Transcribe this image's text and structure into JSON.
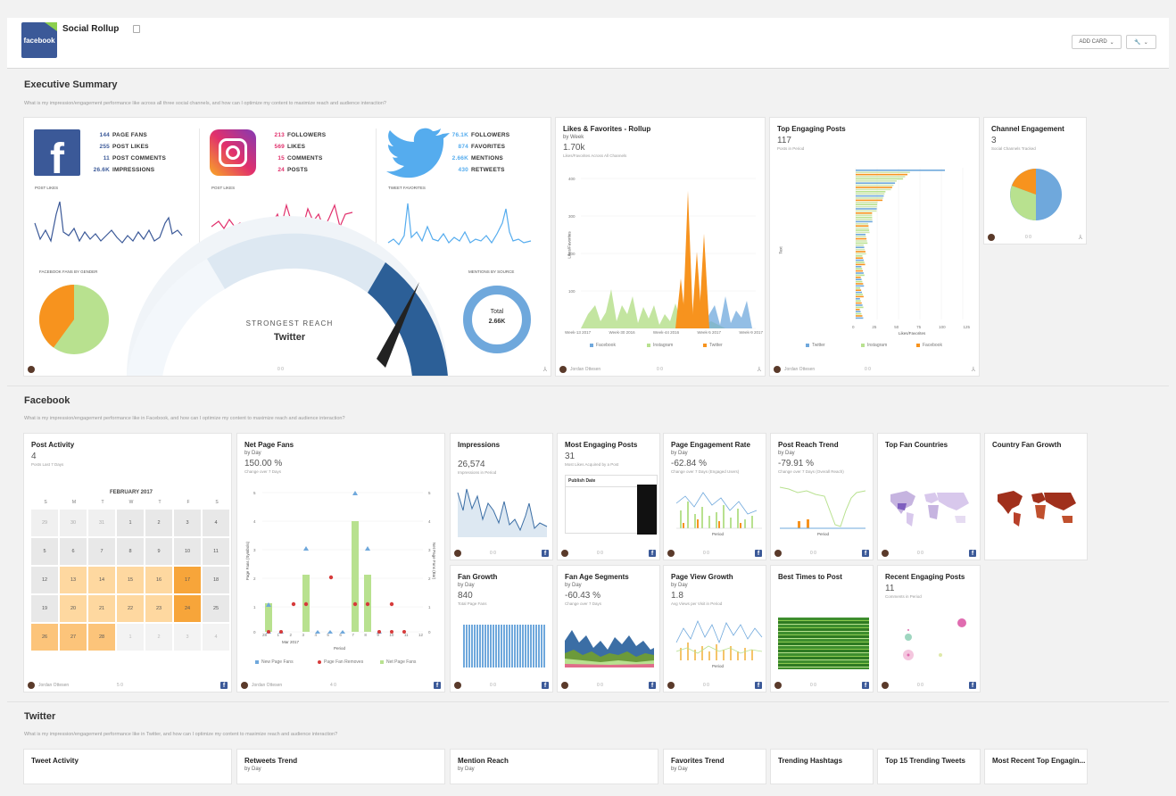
{
  "app": {
    "title": "Social Rollup",
    "logo_text": "facebook",
    "add_card": "ADD CARD",
    "colors": {
      "facebook": "#3b5998",
      "twitter": "#55acee",
      "instagram": "#e1306c",
      "orange": "#f7931e",
      "green": "#b8e18f"
    }
  },
  "sections": {
    "exec": {
      "title": "Executive Summary",
      "subtitle": "What is my impression/engagement performance like across all three social channels, and how can I optimize my content to maximize reach and audience interaction?"
    },
    "facebook": {
      "title": "Facebook",
      "subtitle": "What is my impression/engagement performance like in Facebook, and how can I optimize my content to maximize reach and audience interaction?"
    },
    "twitter": {
      "title": "Twitter",
      "subtitle": "What is my impression/engagement performance like in Twitter, and how can I optimize my content to maximize reach and audience interaction?"
    }
  },
  "summary": {
    "facebook_stats": [
      {
        "v": "144",
        "l": "PAGE FANS"
      },
      {
        "v": "255",
        "l": "POST LIKES"
      },
      {
        "v": "11",
        "l": "POST COMMENTS"
      },
      {
        "v": "26.6K",
        "l": "IMPRESSIONS"
      }
    ],
    "instagram_stats": [
      {
        "v": "213",
        "l": "FOLLOWERS"
      },
      {
        "v": "569",
        "l": "LIKES"
      },
      {
        "v": "15",
        "l": "COMMENTS"
      },
      {
        "v": "24",
        "l": "POSTS"
      }
    ],
    "twitter_stats": [
      {
        "v": "76.1K",
        "l": "FOLLOWERS"
      },
      {
        "v": "874",
        "l": "FAVORITES"
      },
      {
        "v": "2.66K",
        "l": "MENTIONS"
      },
      {
        "v": "430",
        "l": "RETWEETS"
      }
    ],
    "fb_spark_label": "POST LIKES",
    "ig_spark_label": "POST LIKES",
    "tw_spark_label": "TWEET FAVORITES",
    "gender_label": "FACEBOOK FANS BY GENDER",
    "mentions_label": "MENTIONS BY SOURCE",
    "gauge_title": "STRONGEST REACH",
    "gauge_value": "Twitter",
    "donut_label": "Total",
    "donut_value": "2.66K",
    "footer_counts": "0   0"
  },
  "likes_rollup": {
    "title": "Likes & Favorites - Rollup",
    "by": "by Week",
    "value": "1.70k",
    "note": "Likes/Favorites Across All Channels",
    "ylabel": "Likes/Favorites",
    "yticks": [
      "400",
      "300",
      "200",
      "100"
    ],
    "xticks": [
      "Week-13 2017",
      "Week-30 2016",
      "Week-44 2016",
      "Week-5 2017",
      "Week-9 2017"
    ],
    "legend": [
      "Facebook",
      "Instagram",
      "Twitter"
    ],
    "user": "Jordan Ottesen",
    "counts": "0   0"
  },
  "top_posts": {
    "title": "Top Engaging Posts",
    "value": "117",
    "note": "Posts in Period",
    "ylabel": "Text",
    "xticks": [
      "0",
      "25",
      "50",
      "75",
      "100",
      "125"
    ],
    "xlabel": "Likes/Favorites",
    "legend": [
      "Twitter",
      "Instagram",
      "Facebook"
    ],
    "user": "Jordan Ottesen",
    "counts": "0   0"
  },
  "channel": {
    "title": "Channel Engagement",
    "value": "3",
    "note": "Social Channels Tracked",
    "counts": "0   0"
  },
  "fb_cards": {
    "post_activity": {
      "title": "Post Activity",
      "value": "4",
      "note": "Posts Last 7 Days",
      "month": "FEBRUARY 2017",
      "days": [
        "S",
        "M",
        "T",
        "W",
        "T",
        "F",
        "S"
      ],
      "user": "Jordan Ottesen",
      "counts": "5   0",
      "cells": [
        "29",
        "30",
        "31",
        "1",
        "2",
        "3",
        "4",
        "5",
        "6",
        "7",
        "8",
        "9",
        "10",
        "11",
        "12",
        "13",
        "14",
        "15",
        "16",
        "17",
        "18",
        "19",
        "20",
        "21",
        "22",
        "23",
        "24",
        "25",
        "26",
        "27",
        "28",
        "1",
        "2",
        "3",
        "4"
      ]
    },
    "net_fans": {
      "title": "Net Page Fans",
      "by": "by Day",
      "value": "150.00 %",
      "note": "Change over 7 Days",
      "xlabel": "Period",
      "xsub": "Mar 2017",
      "ylabel_l": "Page Fans (Symbols)",
      "ylabel_r": "Net Page Fans (Bar)",
      "yticks": [
        "5",
        "4",
        "3",
        "2",
        "1",
        "0"
      ],
      "xticks": [
        "28",
        "1",
        "2",
        "3",
        "4",
        "5",
        "6",
        "7",
        "8",
        "9",
        "10",
        "11",
        "12"
      ],
      "legend": [
        "New Page Fans",
        "Page Fan Removes",
        "Net Page Fans"
      ],
      "user": "Jordan Ottesen",
      "counts": "4   0"
    },
    "impressions": {
      "title": "Impressions",
      "value": "26,574",
      "note": "Impressions in Period",
      "counts": "0   0"
    },
    "most_engaging": {
      "title": "Most Engaging Posts",
      "value": "31",
      "note": "Most Likes Acquired by a Post",
      "col": "Publish Date",
      "counts": "0   0"
    },
    "engagement_rate": {
      "title": "Page Engagement Rate",
      "by": "by Day",
      "value": "-62.84 %",
      "note": "Change over 7 Days (Engaged Users)",
      "xlabel": "Period",
      "counts": "0   0"
    },
    "reach_trend": {
      "title": "Post Reach Trend",
      "by": "by Day",
      "value": "-79.91 %",
      "note": "Change over 7 Days (Overall Reach)",
      "xlabel": "Period",
      "counts": "0   0"
    },
    "fan_countries": {
      "title": "Top Fan Countries",
      "counts": "0   0"
    },
    "country_growth": {
      "title": "Country Fan Growth"
    },
    "fan_growth": {
      "title": "Fan Growth",
      "by": "by Day",
      "value": "840",
      "note": "Total Page Fans",
      "counts": "0   0"
    },
    "age_segments": {
      "title": "Fan Age Segments",
      "by": "by Day",
      "value": "-60.43 %",
      "note": "Change over 7 Days",
      "counts": "0   0"
    },
    "page_views": {
      "title": "Page View Growth",
      "by": "by Day",
      "value": "1.8",
      "note": "Avg Views per Visit in Period",
      "xlabel": "Period",
      "counts": "0   0"
    },
    "best_times": {
      "title": "Best Times to Post",
      "counts": "0   0"
    },
    "recent_posts": {
      "title": "Recent Engaging Posts",
      "value": "11",
      "note": "Comments in Period",
      "counts": "0   0"
    }
  },
  "tw_cards": [
    {
      "title": "Tweet Activity"
    },
    {
      "title": "Retweets Trend",
      "by": "by Day"
    },
    {
      "title": "Mention Reach",
      "by": "by Day"
    },
    {
      "title": "Favorites Trend",
      "by": "by Day"
    },
    {
      "title": "Trending Hashtags"
    },
    {
      "title": "Top 15 Trending Tweets"
    },
    {
      "title": "Most Recent Top Engagin..."
    }
  ]
}
